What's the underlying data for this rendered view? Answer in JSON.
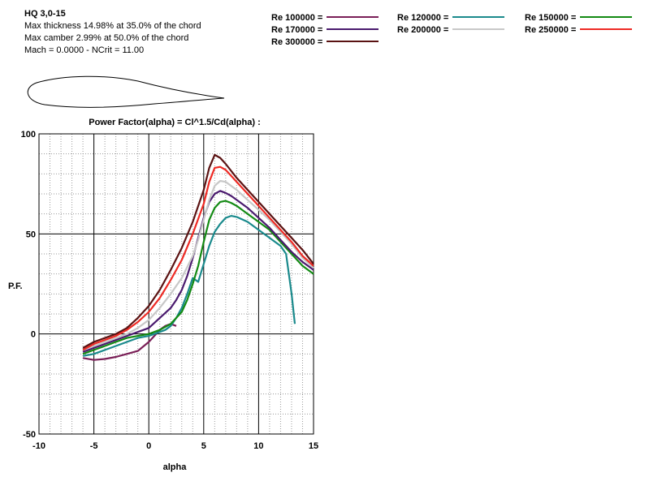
{
  "airfoil": {
    "name": "HQ 3,0-15",
    "thickness": "Max thickness 14.98% at 35.0% of the chord",
    "camber": "Max camber 2.99% at 50.0% of the chord",
    "flow": "Mach = 0.0000 - NCrit = 11.00"
  },
  "chart_data": {
    "type": "line",
    "title": "Power Factor(alpha) = Cl^1.5/Cd(alpha) :",
    "xlabel": "alpha",
    "ylabel": "P.F.",
    "xlim": [
      -10,
      15
    ],
    "ylim": [
      -50,
      100
    ],
    "xticks": [
      -10,
      -5,
      0,
      5,
      10,
      15
    ],
    "yticks": [
      -50,
      0,
      50,
      100
    ],
    "grid": true,
    "legend_position": "top",
    "series": [
      {
        "name": "Re 100000 =",
        "color": "#7a1f57",
        "x": [
          -6,
          -5,
          -4,
          -3,
          -2,
          -1,
          0,
          0.5,
          1,
          1.5,
          2,
          2.5
        ],
        "y": [
          -12,
          -13,
          -12.5,
          -11.5,
          -10,
          -8.5,
          -4,
          -1,
          2,
          4,
          5,
          4
        ]
      },
      {
        "name": "Re 120000 =",
        "color": "#1a8a8c",
        "x": [
          -6,
          -5,
          -4,
          -3,
          -2,
          -1,
          0,
          0.5,
          1,
          1.5,
          2,
          2.5,
          3,
          3.5,
          4,
          4.5,
          5,
          5.5,
          6,
          6.5,
          7,
          7.5,
          8,
          9,
          10,
          11,
          12,
          12.5,
          13,
          13.3
        ],
        "y": [
          -11,
          -10,
          -8,
          -6,
          -4,
          -2,
          -1,
          0,
          1,
          2,
          4,
          8,
          13,
          20,
          28,
          26,
          35,
          44,
          51,
          55,
          58,
          59,
          58.5,
          56,
          52,
          48,
          44,
          40,
          20,
          5
        ]
      },
      {
        "name": "Re 150000 =",
        "color": "#138a13",
        "x": [
          -6,
          -5,
          -4,
          -3,
          -2,
          -1,
          0,
          1,
          2,
          2.5,
          3,
          3.5,
          4,
          4.5,
          5,
          5.5,
          6,
          6.5,
          7,
          7.5,
          8,
          9,
          10,
          11,
          12,
          13,
          14,
          15
        ],
        "y": [
          -10,
          -8,
          -6,
          -4,
          -2,
          -1,
          0,
          2,
          5,
          8,
          11,
          17,
          25,
          34,
          46,
          57,
          63,
          66,
          66.5,
          65.5,
          64,
          60,
          56,
          52,
          46,
          40,
          34,
          30
        ]
      },
      {
        "name": "Re 170000 =",
        "color": "#4a1a6e",
        "x": [
          -6,
          -5,
          -4,
          -3,
          -2,
          -1,
          0,
          1,
          2,
          2.5,
          3,
          3.5,
          4,
          4.5,
          5,
          5.5,
          6,
          6.5,
          7,
          7.5,
          8,
          9,
          10,
          11,
          12,
          13,
          14,
          15
        ],
        "y": [
          -9,
          -7,
          -5,
          -3,
          -1,
          1,
          3,
          8,
          13,
          17,
          22,
          29,
          38,
          48,
          58,
          66,
          70,
          71.5,
          70.5,
          69,
          67,
          63,
          58,
          53,
          47,
          41,
          36,
          32
        ]
      },
      {
        "name": "Re 200000 =",
        "color": "#c8c8c8",
        "x": [
          -6,
          -5,
          -4,
          -3,
          -2,
          -1,
          0,
          1,
          2,
          3,
          4,
          4.5,
          5,
          5.5,
          6,
          6.5,
          7,
          7.5,
          8,
          9,
          10,
          11,
          12,
          13,
          14,
          15
        ],
        "y": [
          -8,
          -6,
          -4,
          -2,
          0,
          3,
          7,
          13,
          20,
          28,
          39,
          47,
          57,
          67,
          74,
          76.5,
          76,
          74,
          72,
          67,
          62,
          57,
          51,
          45,
          38,
          33
        ]
      },
      {
        "name": "Re 250000 =",
        "color": "#ee2a24",
        "x": [
          -6,
          -5,
          -4,
          -3,
          -2,
          -1,
          0,
          1,
          2,
          3,
          4,
          5,
          5.5,
          6,
          6.5,
          7,
          7.5,
          8,
          9,
          10,
          11,
          12,
          13,
          14,
          15
        ],
        "y": [
          -8,
          -5,
          -3,
          -1,
          2,
          6,
          11,
          18,
          27,
          37,
          50,
          65,
          76,
          83,
          83.5,
          82,
          79,
          76,
          70,
          64,
          58,
          52,
          46,
          39,
          34
        ]
      },
      {
        "name": "Re 300000 =",
        "color": "#5a1212",
        "x": [
          -6,
          -5,
          -4,
          -3,
          -2,
          -1,
          0,
          1,
          2,
          3,
          4,
          5,
          5.5,
          6,
          6.5,
          7,
          8,
          9,
          10,
          11,
          12,
          13,
          14,
          15
        ],
        "y": [
          -7,
          -4,
          -2,
          0,
          3,
          8,
          14,
          22,
          32,
          43,
          56,
          72,
          83,
          89.5,
          88,
          85,
          78,
          72,
          66,
          60,
          54,
          48,
          42,
          35
        ]
      }
    ]
  }
}
